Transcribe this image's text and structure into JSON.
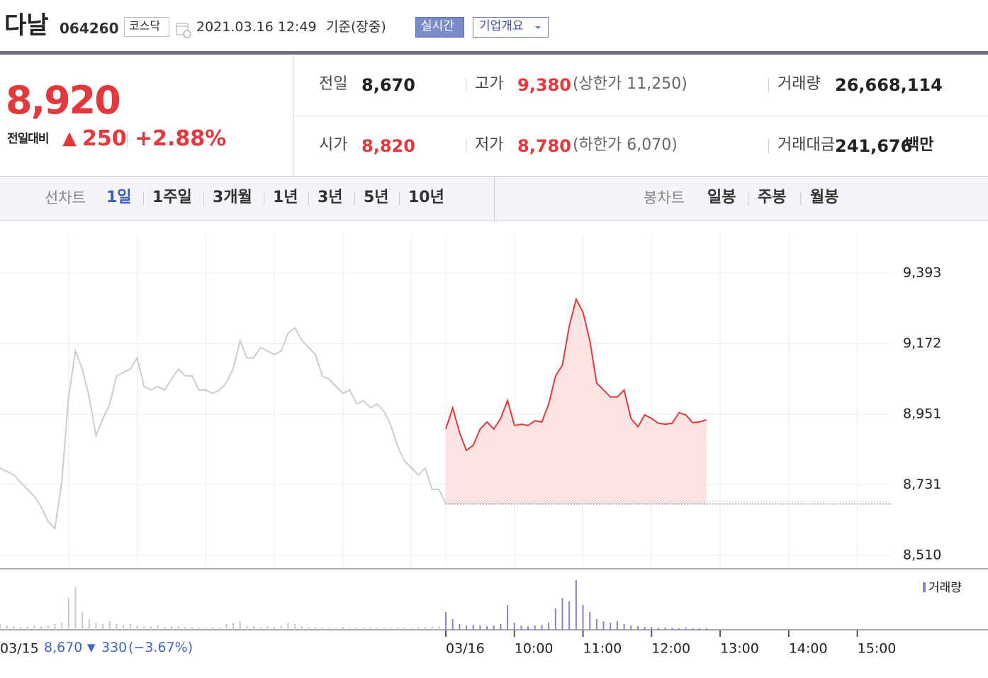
{
  "header": {
    "name": "다날",
    "code": "064260",
    "market": "코스닥",
    "datetime": "2021.03.16 12:49",
    "basis": "기준(장중)",
    "realtime": "실시간",
    "company": "기업개요"
  },
  "quote": {
    "price": "8,920",
    "change_label": "전일대비",
    "arrow": "▲",
    "change": "250",
    "rate": "+2.88%"
  },
  "stats": [
    {
      "label": "전일",
      "value": "8,670"
    },
    {
      "label": "고가",
      "value": "9,380",
      "note": "(상한가 11,250)"
    },
    {
      "label": "거래량",
      "value": "26,668,114"
    },
    {
      "label": "시가",
      "value": "8,820"
    },
    {
      "label": "저가",
      "value": "8,780",
      "note": "(하한가 6,070)"
    },
    {
      "label": "거래대금",
      "value": "241,676",
      "unit": "백만"
    }
  ],
  "tabs": {
    "line_label": "선차트",
    "periods": [
      "1일",
      "1주일",
      "3개월",
      "1년",
      "3년",
      "5년",
      "10년"
    ],
    "candle_label": "봉차트",
    "candles": [
      "일봉",
      "주봉",
      "월봉"
    ]
  },
  "prev_day": {
    "close": "8,670",
    "arrow": "▼",
    "change": "330",
    "rate": "(−3.67%)"
  },
  "chart_data": [
    {
      "type": "line",
      "ylim": [
        8472,
        9515
      ],
      "xlim": [
        0,
        13
      ],
      "baseline": 8670,
      "grid": true,
      "yticks": [
        {
          "value": 8510,
          "label": "8,510"
        },
        {
          "value": 8731,
          "label": "8,731"
        },
        {
          "value": 8951,
          "label": "8,951"
        },
        {
          "value": 9172,
          "label": "9,172"
        },
        {
          "value": 9393,
          "label": "9,393"
        }
      ],
      "xticks": [
        {
          "value": 0,
          "label": "03/15"
        },
        {
          "value": 1,
          "label": null
        },
        {
          "value": 2,
          "label": null
        },
        {
          "value": 3,
          "label": null
        },
        {
          "value": 4,
          "label": null
        },
        {
          "value": 5,
          "label": null
        },
        {
          "value": 6,
          "label": null
        },
        {
          "value": 6.5,
          "label": "03/16"
        },
        {
          "value": 7.5,
          "label": "10:00"
        },
        {
          "value": 8.5,
          "label": "11:00"
        },
        {
          "value": 9.5,
          "label": "12:00"
        },
        {
          "value": 10.5,
          "label": "13:00"
        },
        {
          "value": 11.5,
          "label": "14:00"
        },
        {
          "value": 12.5,
          "label": "15:00"
        }
      ],
      "series": [
        {
          "color": "#cccccc",
          "x": [
            0,
            0.1,
            0.2,
            0.3,
            0.4,
            0.5,
            0.6,
            0.7,
            0.8,
            0.9,
            1,
            1.1,
            1.2,
            1.3,
            1.4,
            1.5,
            1.6,
            1.7,
            1.8,
            1.9,
            2,
            2.1,
            2.2,
            2.3,
            2.4,
            2.5,
            2.6,
            2.7,
            2.8,
            2.9,
            3,
            3.1,
            3.2,
            3.3,
            3.4,
            3.5,
            3.6,
            3.7,
            3.8,
            3.9,
            4,
            4.1,
            4.2,
            4.3,
            4.4,
            4.5,
            4.6,
            4.7,
            4.8,
            4.9,
            5,
            5.1,
            5.2,
            5.3,
            5.4,
            5.5,
            5.6,
            5.7,
            5.8,
            5.9,
            6,
            6.1,
            6.2,
            6.3,
            6.4,
            6.5
          ],
          "values": [
            8783,
            8772,
            8761,
            8738,
            8716,
            8694,
            8661,
            8616,
            8594,
            8738,
            9005,
            9149,
            9093,
            9005,
            8883,
            8938,
            8983,
            9071,
            9082,
            9093,
            9127,
            9038,
            9027,
            9038,
            9027,
            9060,
            9093,
            9071,
            9071,
            9027,
            9027,
            9016,
            9027,
            9049,
            9093,
            9182,
            9127,
            9127,
            9160,
            9149,
            9138,
            9149,
            9204,
            9222,
            9182,
            9160,
            9138,
            9071,
            9060,
            9038,
            9016,
            9027,
            8983,
            8994,
            8971,
            8983,
            8960,
            8916,
            8849,
            8805,
            8783,
            8761,
            8783,
            8716,
            8716,
            8672
          ]
        },
        {
          "color": "#e4393c",
          "fill": "#fbe3e3",
          "x": [
            6.5,
            6.6,
            6.7,
            6.8,
            6.9,
            7,
            7.1,
            7.2,
            7.3,
            7.4,
            7.5,
            7.6,
            7.7,
            7.8,
            7.9,
            8,
            8.1,
            8.2,
            8.3,
            8.4,
            8.5,
            8.6,
            8.7,
            8.8,
            8.9,
            9,
            9.1,
            9.2,
            9.3,
            9.4,
            9.5,
            9.6,
            9.7,
            9.8,
            9.9,
            10,
            10.1,
            10.2,
            10.3
          ],
          "values": [
            8905,
            8971,
            8894,
            8838,
            8854,
            8905,
            8927,
            8905,
            8938,
            8994,
            8916,
            8920,
            8916,
            8931,
            8927,
            8983,
            9071,
            9105,
            9227,
            9311,
            9271,
            9182,
            9049,
            9027,
            9005,
            9005,
            9027,
            8938,
            8912,
            8949,
            8938,
            8923,
            8920,
            8923,
            8956,
            8949,
            8925,
            8927,
            8934
          ]
        }
      ]
    },
    {
      "type": "bar",
      "ylim": [
        0,
        3000000
      ],
      "xlim": [
        0,
        13
      ],
      "series": [
        {
          "color": "#c8c8c8",
          "x": [
            0,
            0.1,
            0.2,
            0.3,
            0.4,
            0.5,
            0.6,
            0.7,
            0.8,
            0.9,
            1,
            1.1,
            1.2,
            1.3,
            1.4,
            1.5,
            1.6,
            1.7,
            1.8,
            1.9,
            2,
            2.1,
            2.2,
            2.3,
            2.4,
            2.5,
            2.6,
            2.7,
            2.8,
            2.9,
            3,
            3.1,
            3.2,
            3.3,
            3.4,
            3.5,
            3.6,
            3.7,
            3.8,
            3.9,
            4,
            4.1,
            4.2,
            4.3,
            4.4,
            4.5,
            4.6,
            4.7,
            4.8,
            4.9,
            5,
            5.1,
            5.2,
            5.3,
            5.4,
            5.5,
            5.6,
            5.7,
            5.8,
            5.9,
            6,
            6.1,
            6.2,
            6.3,
            6.4,
            6.5
          ],
          "values": [
            300000,
            225000,
            187500,
            150000,
            187500,
            225000,
            187500,
            225000,
            300000,
            375000,
            1687500,
            2250000,
            937500,
            562500,
            375000,
            300000,
            450000,
            300000,
            225000,
            300000,
            225000,
            187500,
            187500,
            225000,
            150000,
            187500,
            187500,
            150000,
            150000,
            112500,
            112500,
            150000,
            112500,
            300000,
            375000,
            450000,
            225000,
            187500,
            150000,
            187500,
            150000,
            225000,
            375000,
            300000,
            187500,
            150000,
            150000,
            112500,
            112500,
            112500,
            150000,
            112500,
            112500,
            112500,
            112500,
            112500,
            112500,
            112500,
            112500,
            112500,
            112500,
            150000,
            150000,
            187500,
            187500,
            225000
          ]
        },
        {
          "name": "거래량",
          "color": "#8a7fd0",
          "x": [
            6.5,
            6.6,
            6.7,
            6.8,
            6.9,
            7,
            7.1,
            7.2,
            7.3,
            7.4,
            7.5,
            7.6,
            7.7,
            7.8,
            7.9,
            8,
            8.1,
            8.2,
            8.3,
            8.4,
            8.5,
            8.6,
            8.7,
            8.8,
            8.9,
            9,
            9.1,
            9.2,
            9.3,
            9.4,
            9.5,
            9.6,
            9.7,
            9.8,
            9.9,
            10,
            10.1,
            10.2,
            10.3
          ],
          "values": [
            937500,
            562500,
            300000,
            225000,
            262500,
            225000,
            187500,
            225000,
            300000,
            1312500,
            375000,
            225000,
            187500,
            225000,
            262500,
            375000,
            1125000,
            1687500,
            1500000,
            2625000,
            1312500,
            937500,
            562500,
            450000,
            375000,
            450000,
            300000,
            225000,
            187500,
            150000,
            150000,
            112500,
            112500,
            112500,
            75000,
            112500,
            75000,
            75000,
            75000
          ]
        }
      ]
    }
  ]
}
